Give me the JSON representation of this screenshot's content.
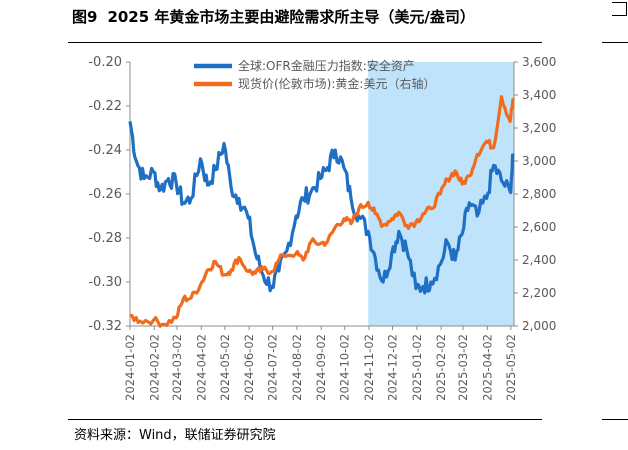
{
  "figure": {
    "number": "图9",
    "title": "2025 年黄金市场主要由避险需求所主导（美元/盎司）",
    "source": "资料来源：Wind，联储证券研究院"
  },
  "colors": {
    "blue": "#1f6fc4",
    "orange": "#f26a1b",
    "shade": "#bfe3fb",
    "axis": "#8c8c8c"
  },
  "chart_data": {
    "type": "line",
    "legend_position": "top",
    "grid": false,
    "shaded_period": {
      "from": "2024-11",
      "to": "2025-05"
    },
    "x": {
      "ticks": [
        "2024-01-02",
        "2024-02-02",
        "2024-03-02",
        "2024-04-02",
        "2024-05-02",
        "2024-06-02",
        "2024-07-02",
        "2024-08-02",
        "2024-09-02",
        "2024-10-02",
        "2024-11-02",
        "2024-12-02",
        "2025-01-02",
        "2025-02-02",
        "2025-03-02",
        "2025-04-02",
        "2025-05-02"
      ]
    },
    "y_left": {
      "min": -0.32,
      "max": -0.2,
      "ticks": [
        "-0.20",
        "-0.22",
        "-0.24",
        "-0.26",
        "-0.28",
        "-0.30",
        "-0.32"
      ]
    },
    "y_right": {
      "min": 2000,
      "max": 3600,
      "ticks": [
        "3,600",
        "3,400",
        "3,200",
        "3,000",
        "2,800",
        "2,600",
        "2,400",
        "2,200",
        "2,000"
      ]
    },
    "series": [
      {
        "name": "全球:OFR金融压力指数:安全资产",
        "axis": "left",
        "color": "blue",
        "points": [
          [
            "2024-01-02",
            -0.227
          ],
          [
            "2024-01-10",
            -0.245
          ],
          [
            "2024-01-20",
            -0.253
          ],
          [
            "2024-02-01",
            -0.25
          ],
          [
            "2024-02-10",
            -0.258
          ],
          [
            "2024-02-20",
            -0.253
          ],
          [
            "2024-03-01",
            -0.255
          ],
          [
            "2024-03-10",
            -0.264
          ],
          [
            "2024-03-20",
            -0.262
          ],
          [
            "2024-04-01",
            -0.244
          ],
          [
            "2024-04-10",
            -0.256
          ],
          [
            "2024-04-20",
            -0.249
          ],
          [
            "2024-05-01",
            -0.237
          ],
          [
            "2024-05-10",
            -0.257
          ],
          [
            "2024-05-20",
            -0.262
          ],
          [
            "2024-06-01",
            -0.271
          ],
          [
            "2024-06-10",
            -0.287
          ],
          [
            "2024-06-20",
            -0.297
          ],
          [
            "2024-07-01",
            -0.302
          ],
          [
            "2024-07-10",
            -0.295
          ],
          [
            "2024-07-20",
            -0.286
          ],
          [
            "2024-08-01",
            -0.27
          ],
          [
            "2024-08-10",
            -0.262
          ],
          [
            "2024-08-20",
            -0.259
          ],
          [
            "2024-09-01",
            -0.253
          ],
          [
            "2024-09-10",
            -0.248
          ],
          [
            "2024-09-20",
            -0.24
          ],
          [
            "2024-10-01",
            -0.248
          ],
          [
            "2024-10-10",
            -0.262
          ],
          [
            "2024-10-20",
            -0.27
          ],
          [
            "2024-11-01",
            -0.277
          ],
          [
            "2024-11-10",
            -0.289
          ],
          [
            "2024-11-20",
            -0.3
          ],
          [
            "2024-12-01",
            -0.287
          ],
          [
            "2024-12-10",
            -0.277
          ],
          [
            "2024-12-20",
            -0.285
          ],
          [
            "2025-01-01",
            -0.303
          ],
          [
            "2025-01-10",
            -0.302
          ],
          [
            "2025-01-20",
            -0.3
          ],
          [
            "2025-02-01",
            -0.292
          ],
          [
            "2025-02-10",
            -0.282
          ],
          [
            "2025-02-20",
            -0.29
          ],
          [
            "2025-03-01",
            -0.278
          ],
          [
            "2025-03-10",
            -0.264
          ],
          [
            "2025-03-20",
            -0.27
          ],
          [
            "2025-04-01",
            -0.262
          ],
          [
            "2025-04-10",
            -0.247
          ],
          [
            "2025-04-20",
            -0.254
          ],
          [
            "2025-05-01",
            -0.259
          ],
          [
            "2025-05-05",
            -0.243
          ]
        ]
      },
      {
        "name": "现货价(伦敦市场):黄金:美元（右轴）",
        "axis": "right",
        "color": "orange",
        "points": [
          [
            "2024-01-02",
            2062
          ],
          [
            "2024-01-15",
            2030
          ],
          [
            "2024-02-01",
            2035
          ],
          [
            "2024-02-15",
            2010
          ],
          [
            "2024-03-01",
            2050
          ],
          [
            "2024-03-10",
            2165
          ],
          [
            "2024-03-20",
            2170
          ],
          [
            "2024-04-01",
            2250
          ],
          [
            "2024-04-10",
            2340
          ],
          [
            "2024-04-20",
            2390
          ],
          [
            "2024-05-01",
            2310
          ],
          [
            "2024-05-10",
            2340
          ],
          [
            "2024-05-20",
            2415
          ],
          [
            "2024-06-01",
            2330
          ],
          [
            "2024-06-10",
            2320
          ],
          [
            "2024-06-20",
            2345
          ],
          [
            "2024-07-01",
            2330
          ],
          [
            "2024-07-15",
            2430
          ],
          [
            "2024-08-01",
            2440
          ],
          [
            "2024-08-10",
            2400
          ],
          [
            "2024-08-20",
            2510
          ],
          [
            "2024-09-01",
            2500
          ],
          [
            "2024-09-10",
            2510
          ],
          [
            "2024-09-20",
            2600
          ],
          [
            "2024-10-01",
            2650
          ],
          [
            "2024-10-10",
            2620
          ],
          [
            "2024-10-20",
            2710
          ],
          [
            "2024-11-01",
            2750
          ],
          [
            "2024-11-10",
            2680
          ],
          [
            "2024-11-20",
            2610
          ],
          [
            "2024-12-01",
            2650
          ],
          [
            "2024-12-10",
            2690
          ],
          [
            "2024-12-20",
            2610
          ],
          [
            "2025-01-01",
            2630
          ],
          [
            "2025-01-10",
            2680
          ],
          [
            "2025-01-20",
            2710
          ],
          [
            "2025-02-01",
            2800
          ],
          [
            "2025-02-10",
            2890
          ],
          [
            "2025-02-20",
            2940
          ],
          [
            "2025-03-01",
            2860
          ],
          [
            "2025-03-10",
            2910
          ],
          [
            "2025-03-20",
            3040
          ],
          [
            "2025-04-01",
            3120
          ],
          [
            "2025-04-10",
            3080
          ],
          [
            "2025-04-20",
            3390
          ],
          [
            "2025-05-01",
            3240
          ],
          [
            "2025-05-05",
            3380
          ]
        ]
      }
    ]
  }
}
